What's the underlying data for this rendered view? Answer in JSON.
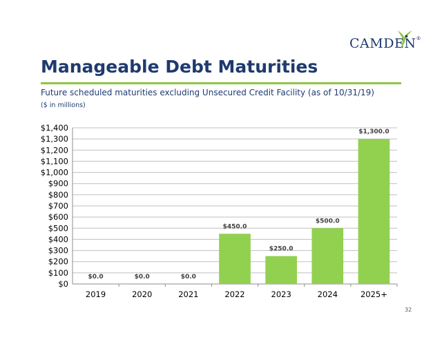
{
  "brand": {
    "logo_text": "CAMDEN",
    "trademark": "®"
  },
  "slide": {
    "title": "Manageable Debt Maturities",
    "subtitle": "Future scheduled maturities excluding Unsecured Credit Facility (as of 10/31/19)",
    "units_note": "($ in millions)",
    "page_number": "32"
  },
  "colors": {
    "bar": "#92d050",
    "title": "#1f3a6e",
    "rule": "#8dc63f",
    "gridline": "#bfbfbf"
  },
  "chart_data": {
    "type": "bar",
    "title": "",
    "xlabel": "",
    "ylabel": "",
    "categories": [
      "2019",
      "2020",
      "2021",
      "2022",
      "2023",
      "2024",
      "2025+"
    ],
    "values": [
      0.0,
      0.0,
      0.0,
      450.0,
      250.0,
      500.0,
      1300.0
    ],
    "data_labels": [
      "$0.0",
      "$0.0",
      "$0.0",
      "$450.0",
      "$250.0",
      "$500.0",
      "$1,300.0"
    ],
    "ylim": [
      0,
      1400
    ],
    "y_ticks": [
      0,
      100,
      200,
      300,
      400,
      500,
      600,
      700,
      800,
      900,
      1000,
      1100,
      1200,
      1300,
      1400
    ],
    "y_tick_labels": [
      "$0",
      "$100",
      "$200",
      "$300",
      "$400",
      "$500",
      "$600",
      "$700",
      "$800",
      "$900",
      "$1,000",
      "$1,100",
      "$1,200",
      "$1,300",
      "$1,400"
    ],
    "grid": true
  }
}
